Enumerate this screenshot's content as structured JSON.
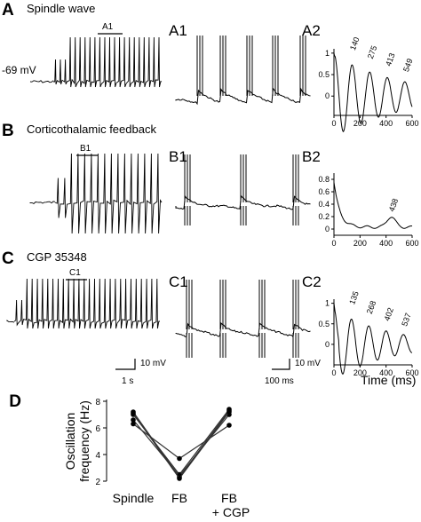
{
  "panels": [
    {
      "label": "A",
      "title": "Spindle wave",
      "marker": "A1",
      "sub1": "A1",
      "sub2": "A2",
      "vm": "-69 mV"
    },
    {
      "label": "B",
      "title": "Corticothalamic feedback",
      "marker": "B1",
      "sub1": "B1",
      "sub2": "B2"
    },
    {
      "label": "C",
      "title": "CGP 35348",
      "marker": "C1",
      "sub1": "C1",
      "sub2": "C2"
    }
  ],
  "scalebars": {
    "left_v": "10 mV",
    "left_t": "1 s",
    "right_v": "10 mV",
    "right_t": "100 ms"
  },
  "time_label": "Time (ms)",
  "chart_data": [
    {
      "type": "line",
      "panel": "A2",
      "x_ticks": [
        "0",
        "200",
        "400",
        "600"
      ],
      "y_ticks": [
        "1",
        "0.5",
        "0"
      ],
      "xlim": [
        0,
        600
      ],
      "ylim": [
        -0.45,
        1.1
      ],
      "peaks": [
        140,
        275,
        413,
        549
      ],
      "peak_labels": [
        "140",
        "275",
        "413",
        "549"
      ],
      "peak_heights": [
        0.95,
        0.75,
        0.58,
        0.45
      ]
    },
    {
      "type": "line",
      "panel": "B2",
      "x_ticks": [
        "0",
        "200",
        "400",
        "600"
      ],
      "y_ticks": [
        "0.8",
        "0.6",
        "0.4",
        "0.2",
        "0"
      ],
      "xlim": [
        0,
        600
      ],
      "ylim": [
        -0.1,
        0.9
      ],
      "peaks": [
        438
      ],
      "peak_labels": [
        "438"
      ],
      "peak_heights": [
        0.2
      ]
    },
    {
      "type": "line",
      "panel": "C2",
      "x_ticks": [
        "0",
        "200",
        "400",
        "600"
      ],
      "y_ticks": [
        "1",
        "0.5",
        "0"
      ],
      "xlim": [
        0,
        600
      ],
      "ylim": [
        -0.5,
        1.1
      ],
      "peaks": [
        135,
        268,
        402,
        537
      ],
      "peak_labels": [
        "135",
        "268",
        "402",
        "537"
      ],
      "peak_heights": [
        0.85,
        0.62,
        0.45,
        0.32
      ]
    },
    {
      "type": "scatter",
      "panel": "D",
      "ylabel": "Oscillation frequency (Hz)",
      "categories": [
        "Spindle",
        "FB",
        "FB + CGP"
      ],
      "category_lines": [
        [
          "Spindle"
        ],
        [
          "FB"
        ],
        [
          "FB",
          "+ CGP"
        ]
      ],
      "y_ticks": [
        2,
        4,
        6,
        8
      ],
      "ylim": [
        2,
        8
      ],
      "series": [
        {
          "values": [
            7.2,
            2.3,
            7.3
          ]
        },
        {
          "values": [
            7.0,
            2.5,
            7.4
          ]
        },
        {
          "values": [
            6.6,
            2.4,
            7.0
          ]
        },
        {
          "values": [
            6.3,
            3.7,
            6.2
          ]
        },
        {
          "values": [
            7.1,
            2.2,
            7.2
          ]
        }
      ]
    }
  ]
}
